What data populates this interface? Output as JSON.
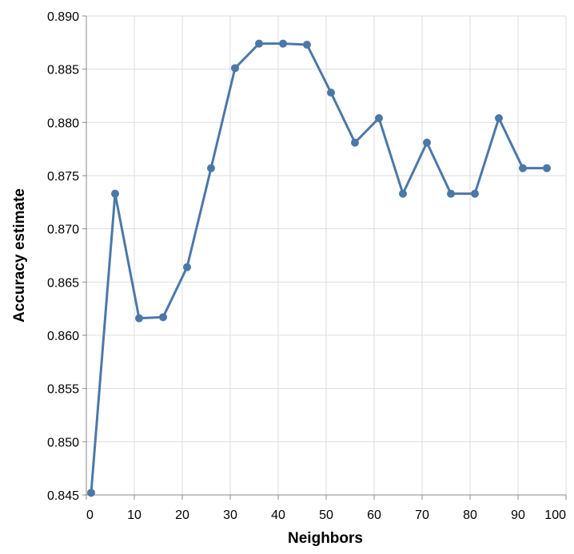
{
  "chart_data": {
    "type": "line",
    "xlabel": "Neighbors",
    "ylabel": "Accuracy estimate",
    "xlim": [
      0,
      100
    ],
    "ylim": [
      0.845,
      0.89
    ],
    "x_ticks": [
      "0",
      "10",
      "20",
      "30",
      "40",
      "50",
      "60",
      "70",
      "80",
      "90",
      "100"
    ],
    "y_ticks": [
      "0.845",
      "0.850",
      "0.855",
      "0.860",
      "0.865",
      "0.870",
      "0.875",
      "0.880",
      "0.885",
      "0.890"
    ],
    "grid": true,
    "legend": "none",
    "series": [
      {
        "color": "#4c78a8",
        "x": [
          1,
          6,
          11,
          16,
          21,
          26,
          31,
          36,
          41,
          46,
          51,
          56,
          61,
          66,
          71,
          76,
          81,
          86,
          91,
          96
        ],
        "values": [
          0.8452,
          0.8733,
          0.8616,
          0.8617,
          0.8664,
          0.8757,
          0.8851,
          0.8874,
          0.8874,
          0.8873,
          0.8828,
          0.8781,
          0.8804,
          0.8733,
          0.8781,
          0.8733,
          0.8733,
          0.8804,
          0.8757,
          0.8757
        ]
      }
    ]
  }
}
